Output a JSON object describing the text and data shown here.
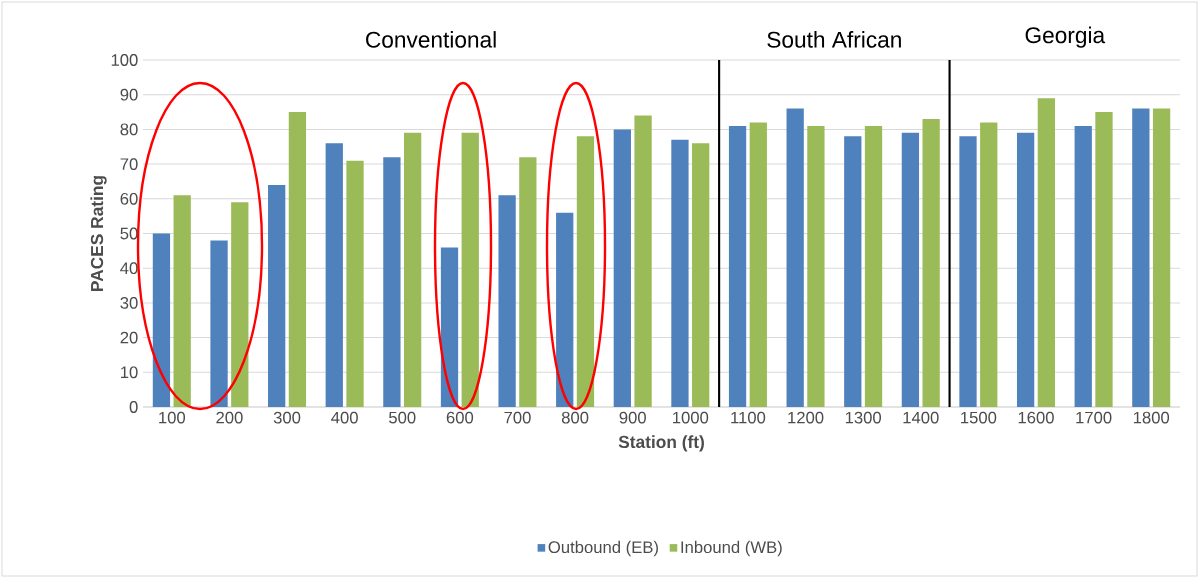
{
  "chart_data": {
    "type": "bar",
    "categories": [
      "100",
      "200",
      "300",
      "400",
      "500",
      "600",
      "700",
      "800",
      "900",
      "1000",
      "1100",
      "1200",
      "1300",
      "1400",
      "1500",
      "1600",
      "1700",
      "1800"
    ],
    "series": [
      {
        "name": "Outbound (EB)",
        "color": "#4f81bd",
        "values": [
          50,
          48,
          64,
          76,
          72,
          46,
          61,
          56,
          80,
          77,
          81,
          86,
          78,
          79,
          78,
          79,
          81,
          86
        ]
      },
      {
        "name": "Inbound (WB)",
        "color": "#9bbb59",
        "values": [
          61,
          59,
          85,
          71,
          79,
          79,
          72,
          78,
          84,
          76,
          82,
          81,
          81,
          83,
          82,
          89,
          85,
          86
        ]
      }
    ],
    "xlabel": "Station (ft)",
    "ylabel": "PACES Rating",
    "ylim": [
      0,
      100
    ],
    "yticks": [
      0,
      10,
      20,
      30,
      40,
      50,
      60,
      70,
      80,
      90,
      100
    ],
    "grid": "y",
    "legend": "bottom",
    "annotations": [
      "Conventional",
      "South African",
      "Georgia"
    ]
  }
}
